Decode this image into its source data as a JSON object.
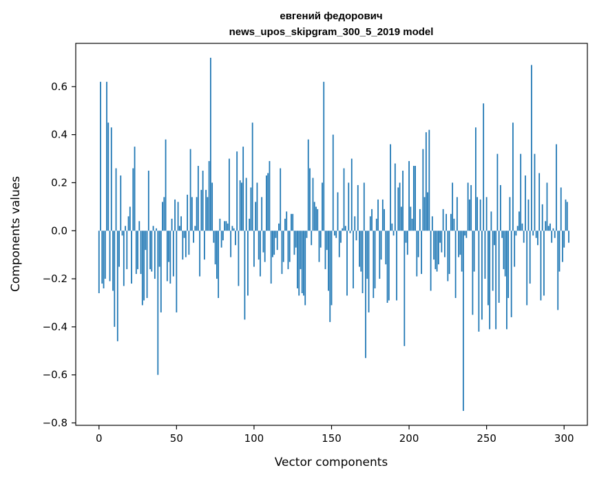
{
  "chart_data": {
    "type": "bar",
    "title_line1": "евгений федорович",
    "title_line2": "news_upos_skipgram_300_5_2019 model",
    "xlabel": "Vector components",
    "ylabel": "Components values",
    "xlim": [
      -15,
      315
    ],
    "ylim": [
      -0.81,
      0.78
    ],
    "xticks": [
      0,
      50,
      100,
      150,
      200,
      250,
      300
    ],
    "yticks": [
      -0.8,
      -0.6,
      -0.4,
      -0.2,
      0.0,
      0.2,
      0.4,
      0.6
    ],
    "ytick_labels": [
      "−0.8",
      "−0.6",
      "−0.4",
      "−0.2",
      "0.0",
      "0.2",
      "0.4",
      "0.6"
    ],
    "grid": false,
    "color": "#1f77b4",
    "values": [
      -0.26,
      0.62,
      -0.22,
      -0.24,
      -0.2,
      0.62,
      0.45,
      -0.21,
      0.43,
      -0.25,
      -0.4,
      0.26,
      -0.46,
      -0.15,
      0.23,
      -0.02,
      -0.23,
      0.02,
      -0.16,
      0.06,
      0.1,
      -0.22,
      0.26,
      0.35,
      -0.18,
      -0.16,
      0.04,
      -0.18,
      -0.31,
      -0.29,
      -0.08,
      -0.28,
      0.25,
      -0.16,
      -0.17,
      0.02,
      -0.2,
      0.01,
      -0.6,
      -0.15,
      -0.34,
      0.12,
      0.14,
      0.38,
      -0.21,
      -0.13,
      -0.22,
      0.05,
      -0.19,
      0.13,
      -0.34,
      0.12,
      0.02,
      0.06,
      -0.12,
      -0.03,
      -0.11,
      0.15,
      -0.1,
      0.34,
      0.14,
      -0.05,
      0.02,
      0.14,
      0.27,
      -0.19,
      0.17,
      0.25,
      -0.12,
      0.17,
      0.14,
      0.29,
      0.72,
      0.2,
      -0.05,
      -0.14,
      -0.2,
      -0.28,
      0.05,
      -0.07,
      -0.04,
      0.04,
      0.04,
      0.03,
      0.3,
      -0.11,
      0.02,
      0.01,
      -0.06,
      0.33,
      -0.23,
      0.21,
      0.2,
      0.35,
      -0.37,
      0.22,
      -0.27,
      0.05,
      0.18,
      0.45,
      -0.15,
      0.12,
      0.2,
      -0.12,
      -0.19,
      0.14,
      -0.09,
      -0.13,
      0.23,
      0.24,
      0.29,
      -0.22,
      -0.11,
      -0.1,
      -0.03,
      -0.08,
      0.03,
      0.26,
      -0.18,
      -0.13,
      0.05,
      0.08,
      -0.16,
      -0.13,
      0.07,
      0.07,
      -0.1,
      -0.07,
      -0.24,
      -0.27,
      -0.16,
      -0.26,
      -0.27,
      -0.31,
      -0.03,
      0.38,
      0.26,
      -0.06,
      0.22,
      0.12,
      0.1,
      0.09,
      -0.13,
      -0.07,
      0.2,
      0.62,
      -0.16,
      -0.08,
      -0.25,
      -0.38,
      -0.31,
      0.4,
      -0.02,
      -0.03,
      0.16,
      -0.11,
      -0.05,
      0.01,
      0.26,
      0.02,
      -0.27,
      0.2,
      -0.01,
      0.3,
      -0.24,
      0.06,
      -0.04,
      0.19,
      -0.15,
      -0.17,
      -0.26,
      0.2,
      -0.53,
      -0.2,
      -0.34,
      0.06,
      0.09,
      -0.28,
      -0.24,
      0.05,
      0.13,
      -0.2,
      -0.12,
      0.13,
      0.09,
      -0.14,
      -0.3,
      -0.29,
      0.36,
      0.03,
      -0.02,
      0.28,
      -0.29,
      0.18,
      0.2,
      0.1,
      0.25,
      -0.48,
      -0.05,
      -0.1,
      0.29,
      0.1,
      0.05,
      0.27,
      0.27,
      -0.19,
      -0.11,
      0.09,
      -0.18,
      0.34,
      0.14,
      0.41,
      0.16,
      0.42,
      -0.25,
      0.06,
      -0.12,
      -0.16,
      -0.17,
      -0.14,
      -0.05,
      -0.09,
      0.09,
      -0.11,
      0.07,
      -0.21,
      -0.18,
      0.07,
      0.2,
      0.05,
      -0.28,
      0.14,
      -0.11,
      -0.1,
      -0.17,
      -0.75,
      -0.02,
      -0.03,
      0.2,
      0.13,
      0.19,
      -0.35,
      -0.17,
      0.43,
      0.14,
      -0.42,
      0.13,
      -0.37,
      0.53,
      -0.2,
      0.14,
      -0.31,
      -0.41,
      0.08,
      -0.25,
      -0.06,
      -0.41,
      0.32,
      -0.3,
      0.19,
      -0.03,
      -0.16,
      -0.19,
      -0.41,
      -0.28,
      0.14,
      -0.36,
      0.45,
      -0.15,
      -0.02,
      0.02,
      0.08,
      0.32,
      0.03,
      -0.05,
      0.23,
      -0.31,
      0.13,
      -0.22,
      0.69,
      -0.02,
      0.32,
      -0.03,
      -0.06,
      0.24,
      -0.29,
      0.11,
      -0.27,
      0.04,
      0.2,
      0.02,
      0.03,
      -0.05,
      0.01,
      -0.03,
      0.36,
      -0.33,
      -0.17,
      0.18,
      -0.13,
      -0.07,
      0.13,
      0.12,
      -0.05
    ]
  }
}
